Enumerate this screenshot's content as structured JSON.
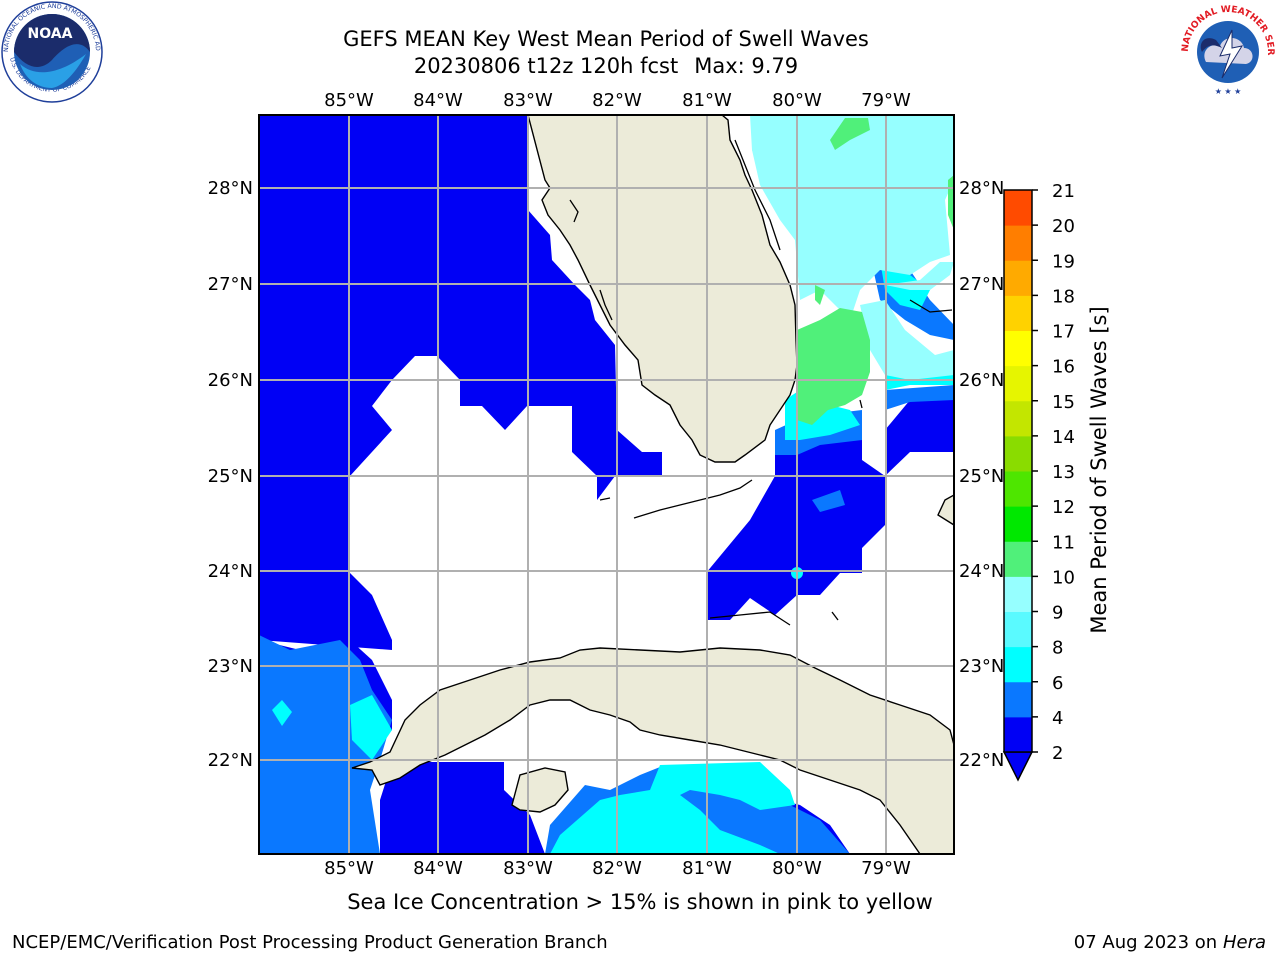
{
  "title": {
    "line1": "GEFS MEAN Key West Mean Period of Swell Waves",
    "run": "20230806 t12z 120h fcst",
    "max": "Max: 9.79"
  },
  "map": {
    "lon_labels": [
      "85°W",
      "84°W",
      "83°W",
      "82°W",
      "81°W",
      "80°W",
      "79°W"
    ],
    "lat_labels": [
      "28°N",
      "27°N",
      "26°N",
      "25°N",
      "24°N",
      "23°N",
      "22°N"
    ],
    "ocean_colors": {
      "2-4": "#0000f5",
      "4-6": "#0a78ff",
      "6-8": "#00ffff",
      "8-9": "#96ffff",
      "9-10": "#50f07a"
    },
    "land_color": "#ecebd9"
  },
  "colorbar": {
    "label": "Mean Period of Swell Waves [s]",
    "ticks": [
      "2",
      "4",
      "6",
      "8",
      "9",
      "10",
      "11",
      "12",
      "13",
      "14",
      "15",
      "16",
      "17",
      "18",
      "19",
      "20",
      "21"
    ],
    "colors": [
      "#0000f5",
      "#0a78ff",
      "#00ffff",
      "#5afaff",
      "#96ffff",
      "#50f07a",
      "#00e800",
      "#4ee600",
      "#8adc00",
      "#c3e600",
      "#e6f500",
      "#ffff00",
      "#ffd200",
      "#ffaa00",
      "#ff7e00",
      "#ff4b00",
      "#ff1e00",
      "#ff0000"
    ]
  },
  "subnote": "Sea Ice Concentration > 15% is shown in pink to yellow",
  "footer": {
    "left": "NCEP/EMC/Verification Post Processing Product Generation Branch",
    "date": "07 Aug 2023 on",
    "machine": "Hera"
  },
  "logos": {
    "noaa_text": "NOAA",
    "noaa_ring": "NATIONAL OCEANIC AND ATMOSPHERIC ADMINISTRATION",
    "noaa_ring_bottom": "U.S. DEPARTMENT OF COMMERCE",
    "nws_ring": "NATIONAL WEATHER SERVICE"
  }
}
